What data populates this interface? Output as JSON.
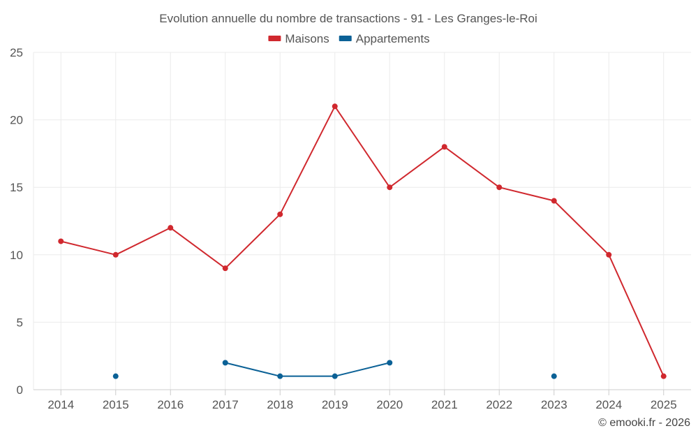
{
  "chart_data": {
    "type": "line",
    "title": "Evolution annuelle du nombre de transactions - 91 - Les Granges-le-Roi",
    "xlabel": "",
    "ylabel": "",
    "categories": [
      "2014",
      "2015",
      "2016",
      "2017",
      "2018",
      "2019",
      "2020",
      "2021",
      "2022",
      "2023",
      "2024",
      "2025"
    ],
    "ylim": [
      0,
      25
    ],
    "yticks": [
      0,
      5,
      10,
      15,
      20,
      25
    ],
    "grid": true,
    "legend_position": "top-center",
    "series": [
      {
        "name": "Maisons",
        "color": "#d0282e",
        "values": [
          11,
          10,
          12,
          9,
          13,
          21,
          15,
          18,
          15,
          14,
          10,
          1
        ]
      },
      {
        "name": "Appartements",
        "color": "#0b6196",
        "values": [
          null,
          1,
          null,
          2,
          1,
          1,
          2,
          null,
          null,
          1,
          null,
          null
        ]
      }
    ],
    "credit": "© emooki.fr - 2026"
  }
}
